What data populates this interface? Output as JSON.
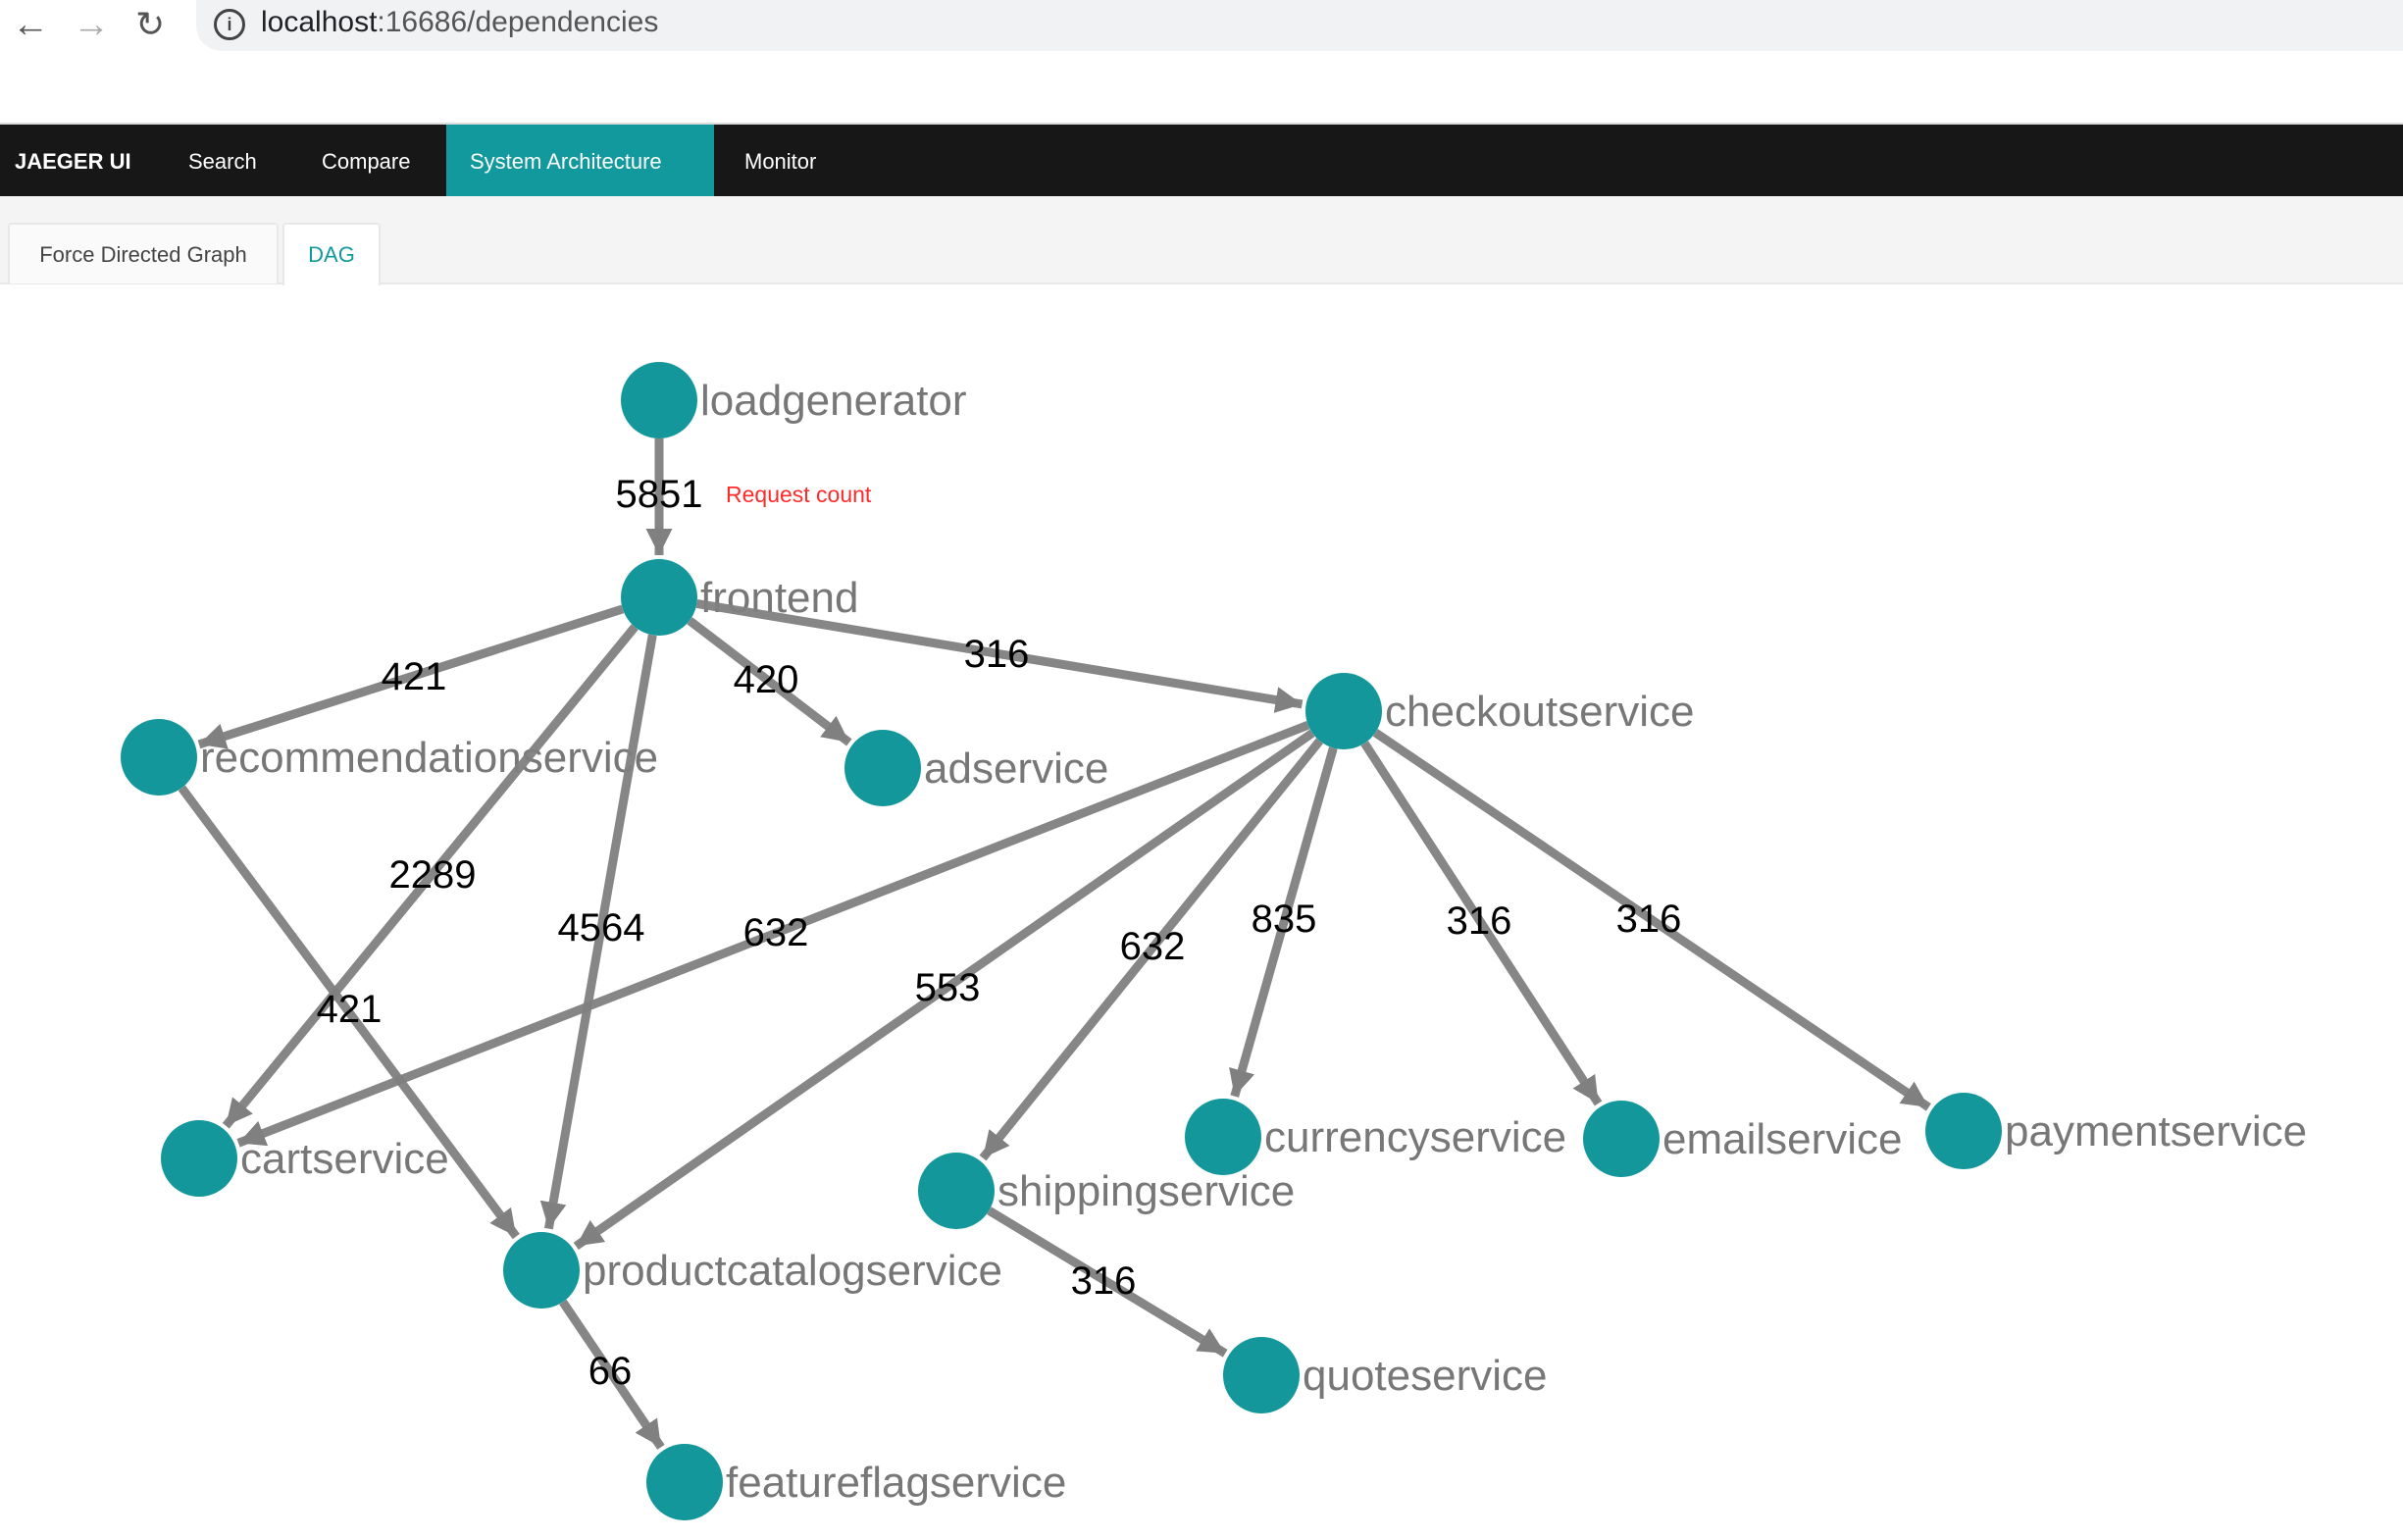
{
  "browser": {
    "url_host": "localhost",
    "url_path": ":16686/dependencies",
    "back_icon": "arrow-left-icon",
    "forward_icon": "arrow-right-icon",
    "reload_icon": "reload-icon",
    "info_icon": "info-icon"
  },
  "nav": {
    "brand": "JAEGER UI",
    "items": [
      {
        "label": "Search"
      },
      {
        "label": "Compare"
      },
      {
        "label": "System Architecture",
        "active": true
      },
      {
        "label": "Monitor"
      }
    ]
  },
  "tabs": [
    {
      "label": "Force Directed Graph"
    },
    {
      "label": "DAG",
      "active": true
    }
  ],
  "graph": {
    "annotation": "Request count",
    "colors": {
      "node": "#13979b",
      "edge": "#808080",
      "node_label": "#777777",
      "annotation": "#ff2a2a"
    },
    "nodes": [
      "loadgenerator",
      "frontend",
      "recommendationservice",
      "adservice",
      "checkoutservice",
      "cartservice",
      "productcatalogservice",
      "shippingservice",
      "currencyservice",
      "emailservice",
      "paymentservice",
      "quoteservice",
      "featureflagservice"
    ],
    "edges": [
      {
        "from": "loadgenerator",
        "to": "frontend",
        "count": "5851"
      },
      {
        "from": "frontend",
        "to": "recommendationservice",
        "count": "421"
      },
      {
        "from": "frontend",
        "to": "adservice",
        "count": "420"
      },
      {
        "from": "frontend",
        "to": "checkoutservice",
        "count": "316"
      },
      {
        "from": "frontend",
        "to": "cartservice",
        "count": "2289"
      },
      {
        "from": "frontend",
        "to": "productcatalogservice",
        "count": "4564"
      },
      {
        "from": "recommendationservice",
        "to": "productcatalogservice",
        "count": "421"
      },
      {
        "from": "checkoutservice",
        "to": "cartservice",
        "count": "632"
      },
      {
        "from": "checkoutservice",
        "to": "productcatalogservice",
        "count": "553"
      },
      {
        "from": "checkoutservice",
        "to": "shippingservice",
        "count": "632"
      },
      {
        "from": "checkoutservice",
        "to": "currencyservice",
        "count": "835"
      },
      {
        "from": "checkoutservice",
        "to": "emailservice",
        "count": "316"
      },
      {
        "from": "checkoutservice",
        "to": "paymentservice",
        "count": "316"
      },
      {
        "from": "shippingservice",
        "to": "quoteservice",
        "count": "316"
      },
      {
        "from": "productcatalogservice",
        "to": "featureflagservice",
        "count": "66"
      }
    ]
  }
}
